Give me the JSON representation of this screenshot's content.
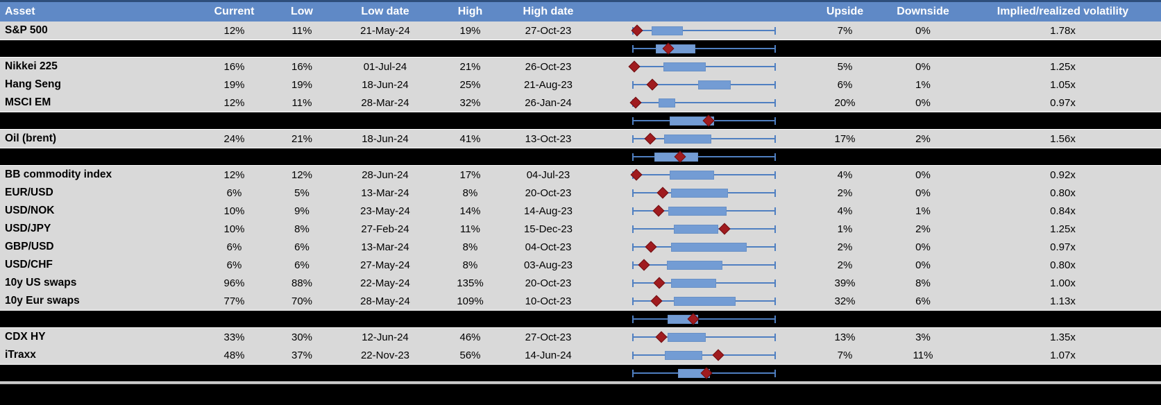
{
  "header": {
    "columns": [
      "Asset",
      "Current",
      "Low",
      "Low date",
      "High",
      "High date",
      "",
      "Upside",
      "Downside",
      "Implied/realized volatility"
    ]
  },
  "colors": {
    "header_bg": "#5F89C6",
    "header_top_border": "#2E4E7B",
    "header_text": "#FFFFFF",
    "row_bg": "#D9D9D9",
    "summary_row_bg": "#000000",
    "row_separator": "#FFFFFF",
    "bottom_divider": "#BFBFBF",
    "whisker": "#4F7FC1",
    "range_box": "#739CD4",
    "diamond": "#A01B1F",
    "text": "#000000"
  },
  "chart_data": {
    "type": "table",
    "description": "Asset implied-volatility monitor: current, 1y low/high levels with dates, embedded horizontal box-whisker range charts (whisker = low-to-high range, blue box = inner band, red diamond = current level), plus upside/downside and implied/realized volatility ratio. Black rows are unlabeled aggregate rows showing only a box-whisker chart.",
    "columns": [
      "Asset",
      "Current",
      "Low",
      "Low date",
      "High",
      "High date",
      "Range chart",
      "Upside",
      "Downside",
      "Implied/realized volatility"
    ],
    "embedded_chart": {
      "type": "box-whisker",
      "orientation": "horizontal",
      "x_range": [
        0,
        1
      ],
      "whisker_meaning": "normalized low (0) to high (1) range",
      "box_meaning": "inner band of the range",
      "diamond_meaning": "current level (red diamond)"
    },
    "rows": [
      {
        "type": "data",
        "asset": "S&P 500",
        "current": "12%",
        "low": "11%",
        "low_date": "21-May-24",
        "high": "19%",
        "high_date": "27-Oct-23",
        "upside": "7%",
        "downside": "0%",
        "implied_realized": "1.78x",
        "boxplot": {
          "whisker": [
            0,
            1
          ],
          "box": [
            0.13,
            0.35
          ],
          "diamond": 0.03
        }
      },
      {
        "type": "summary",
        "boxplot": {
          "whisker": [
            0,
            1
          ],
          "box": [
            0.16,
            0.44
          ],
          "diamond": 0.25
        }
      },
      {
        "type": "data",
        "asset": "Nikkei 225",
        "current": "16%",
        "low": "16%",
        "low_date": "01-Jul-24",
        "high": "21%",
        "high_date": "26-Oct-23",
        "upside": "5%",
        "downside": "0%",
        "implied_realized": "1.25x",
        "boxplot": {
          "whisker": [
            0,
            1
          ],
          "box": [
            0.215,
            0.51
          ],
          "diamond": 0.01
        }
      },
      {
        "type": "data",
        "asset": "Hang Seng",
        "current": "19%",
        "low": "19%",
        "low_date": "18-Jun-24",
        "high": "25%",
        "high_date": "21-Aug-23",
        "upside": "6%",
        "downside": "1%",
        "implied_realized": "1.05x",
        "boxplot": {
          "whisker": [
            0,
            1
          ],
          "box": [
            0.46,
            0.69
          ],
          "diamond": 0.135
        }
      },
      {
        "type": "data",
        "asset": "MSCI EM",
        "current": "12%",
        "low": "11%",
        "low_date": "28-Mar-24",
        "high": "32%",
        "high_date": "26-Jan-24",
        "upside": "20%",
        "downside": "0%",
        "implied_realized": "0.97x",
        "boxplot": {
          "whisker": [
            0,
            1
          ],
          "box": [
            0.18,
            0.3
          ],
          "diamond": 0.02
        }
      },
      {
        "type": "summary",
        "boxplot": {
          "whisker": [
            0,
            1
          ],
          "box": [
            0.26,
            0.57
          ],
          "diamond": 0.53
        }
      },
      {
        "type": "data",
        "asset": "Oil (brent)",
        "current": "24%",
        "low": "21%",
        "low_date": "18-Jun-24",
        "high": "41%",
        "high_date": "13-Oct-23",
        "upside": "17%",
        "downside": "2%",
        "implied_realized": "1.56x",
        "boxplot": {
          "whisker": [
            0,
            1
          ],
          "box": [
            0.22,
            0.55
          ],
          "diamond": 0.12
        }
      },
      {
        "type": "summary",
        "boxplot": {
          "whisker": [
            0,
            1
          ],
          "box": [
            0.15,
            0.46
          ],
          "diamond": 0.33
        }
      },
      {
        "type": "data",
        "asset": "BB commodity index",
        "current": "12%",
        "low": "12%",
        "low_date": "28-Jun-24",
        "high": "17%",
        "high_date": "04-Jul-23",
        "upside": "4%",
        "downside": "0%",
        "implied_realized": "0.92x",
        "boxplot": {
          "whisker": [
            0,
            1
          ],
          "box": [
            0.26,
            0.57
          ],
          "diamond": 0.025
        }
      },
      {
        "type": "data",
        "asset": "EUR/USD",
        "current": "6%",
        "low": "5%",
        "low_date": "13-Mar-24",
        "high": "8%",
        "high_date": "20-Oct-23",
        "upside": "2%",
        "downside": "0%",
        "implied_realized": "0.80x",
        "boxplot": {
          "whisker": [
            0,
            1
          ],
          "box": [
            0.27,
            0.67
          ],
          "diamond": 0.21
        }
      },
      {
        "type": "data",
        "asset": "USD/NOK",
        "current": "10%",
        "low": "9%",
        "low_date": "23-May-24",
        "high": "14%",
        "high_date": "14-Aug-23",
        "upside": "4%",
        "downside": "1%",
        "implied_realized": "0.84x",
        "boxplot": {
          "whisker": [
            0,
            1
          ],
          "box": [
            0.25,
            0.66
          ],
          "diamond": 0.18
        }
      },
      {
        "type": "data",
        "asset": "USD/JPY",
        "current": "10%",
        "low": "8%",
        "low_date": "27-Feb-24",
        "high": "11%",
        "high_date": "15-Dec-23",
        "upside": "1%",
        "downside": "2%",
        "implied_realized": "1.25x",
        "boxplot": {
          "whisker": [
            0,
            1
          ],
          "box": [
            0.29,
            0.6
          ],
          "diamond": 0.645
        }
      },
      {
        "type": "data",
        "asset": "GBP/USD",
        "current": "6%",
        "low": "6%",
        "low_date": "13-Mar-24",
        "high": "8%",
        "high_date": "04-Oct-23",
        "upside": "2%",
        "downside": "0%",
        "implied_realized": "0.97x",
        "boxplot": {
          "whisker": [
            0,
            1
          ],
          "box": [
            0.27,
            0.8
          ],
          "diamond": 0.125
        }
      },
      {
        "type": "data",
        "asset": "USD/CHF",
        "current": "6%",
        "low": "6%",
        "low_date": "27-May-24",
        "high": "8%",
        "high_date": "03-Aug-23",
        "upside": "2%",
        "downside": "0%",
        "implied_realized": "0.80x",
        "boxplot": {
          "whisker": [
            0,
            1
          ],
          "box": [
            0.24,
            0.63
          ],
          "diamond": 0.08
        }
      },
      {
        "type": "data",
        "asset": "10y US swaps",
        "current": "96%",
        "low": "88%",
        "low_date": "22-May-24",
        "high": "135%",
        "high_date": "20-Oct-23",
        "upside": "39%",
        "downside": "8%",
        "implied_realized": "1.00x",
        "boxplot": {
          "whisker": [
            0,
            1
          ],
          "box": [
            0.27,
            0.585
          ],
          "diamond": 0.185
        }
      },
      {
        "type": "data",
        "asset": "10y Eur swaps",
        "current": "77%",
        "low": "70%",
        "low_date": "28-May-24",
        "high": "109%",
        "high_date": "10-Oct-23",
        "upside": "32%",
        "downside": "6%",
        "implied_realized": "1.13x",
        "boxplot": {
          "whisker": [
            0,
            1
          ],
          "box": [
            0.29,
            0.72
          ],
          "diamond": 0.165
        }
      },
      {
        "type": "summary",
        "boxplot": {
          "whisker": [
            0,
            1
          ],
          "box": [
            0.245,
            0.46
          ],
          "diamond": 0.425
        }
      },
      {
        "type": "data",
        "asset": "CDX HY",
        "current": "33%",
        "low": "30%",
        "low_date": "12-Jun-24",
        "high": "46%",
        "high_date": "27-Oct-23",
        "upside": "13%",
        "downside": "3%",
        "implied_realized": "1.35x",
        "boxplot": {
          "whisker": [
            0,
            1
          ],
          "box": [
            0.245,
            0.51
          ],
          "diamond": 0.2
        }
      },
      {
        "type": "data",
        "asset": "iTraxx",
        "current": "48%",
        "low": "37%",
        "low_date": "22-Nov-23",
        "high": "56%",
        "high_date": "14-Jun-24",
        "upside": "7%",
        "downside": "11%",
        "implied_realized": "1.07x",
        "boxplot": {
          "whisker": [
            0,
            1
          ],
          "box": [
            0.225,
            0.49
          ],
          "diamond": 0.6
        }
      },
      {
        "type": "summary",
        "boxplot": {
          "whisker": [
            0,
            1
          ],
          "box": [
            0.315,
            0.54
          ],
          "diamond": 0.515
        }
      }
    ]
  }
}
